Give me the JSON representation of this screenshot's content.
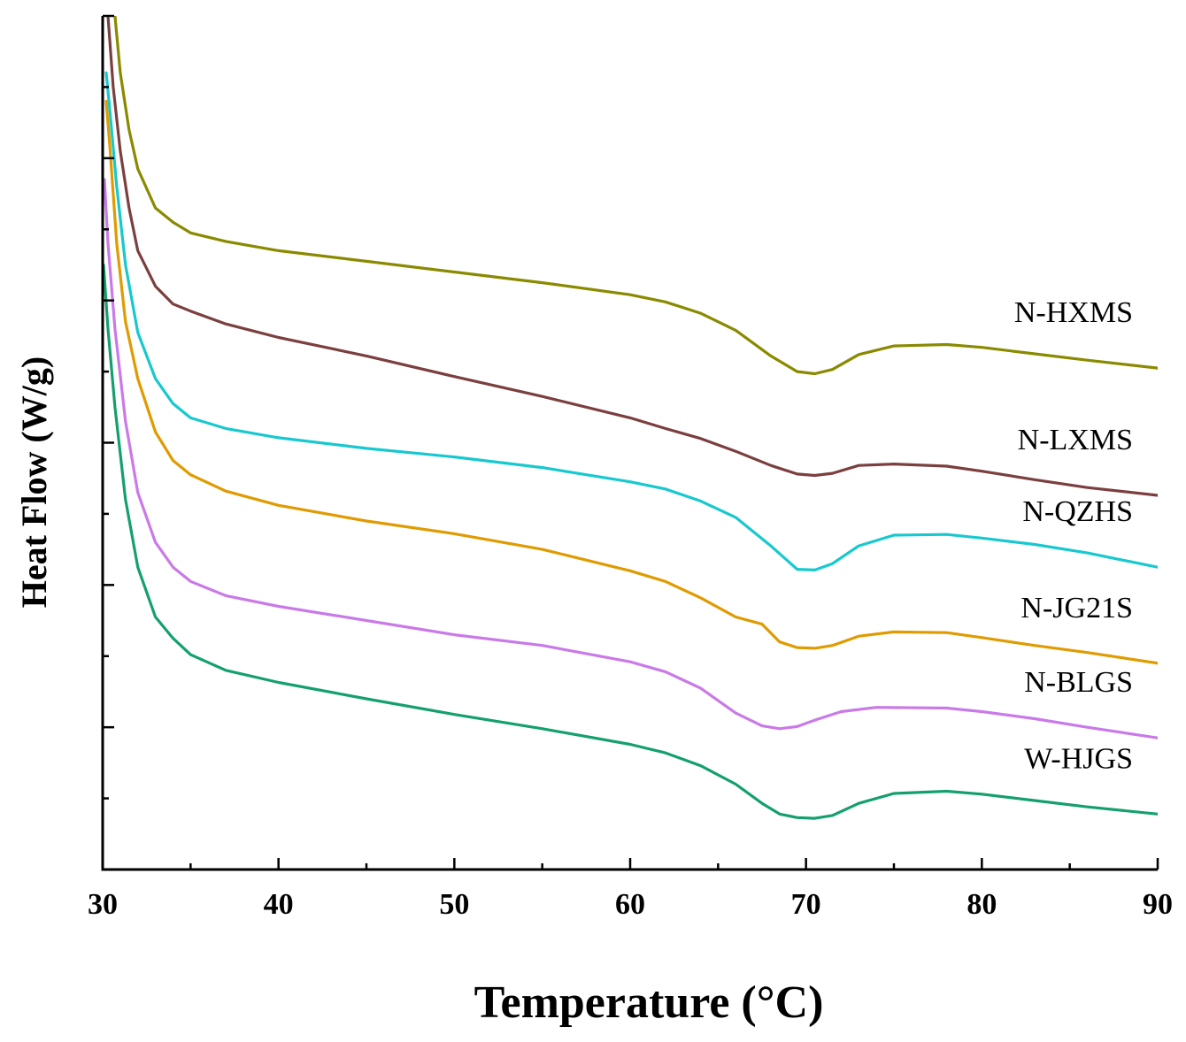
{
  "chart_data": {
    "type": "line",
    "title": "",
    "xlabel": "Temperature (°C)",
    "ylabel": "Heat Flow (W/g)",
    "xlim": [
      30,
      90
    ],
    "ylim": [
      0,
      12
    ],
    "x_ticks": [
      "30",
      "40",
      "50",
      "60",
      "70",
      "80",
      "90"
    ],
    "y_tick_labels_shown": false,
    "grid": false,
    "legend": "inline labels at right",
    "series": [
      {
        "name": "N-HXMS",
        "color": "#8a8a00",
        "points": [
          [
            30.7,
            12.0
          ],
          [
            31.0,
            11.2
          ],
          [
            31.5,
            10.4
          ],
          [
            32,
            9.85
          ],
          [
            33,
            9.3
          ],
          [
            34,
            9.1
          ],
          [
            35,
            8.95
          ],
          [
            37,
            8.83
          ],
          [
            40,
            8.7
          ],
          [
            45,
            8.55
          ],
          [
            50,
            8.4
          ],
          [
            55,
            8.25
          ],
          [
            60,
            8.08
          ],
          [
            62,
            7.98
          ],
          [
            64,
            7.82
          ],
          [
            66,
            7.58
          ],
          [
            68,
            7.22
          ],
          [
            69.5,
            7.0
          ],
          [
            70.5,
            6.97
          ],
          [
            71.5,
            7.03
          ],
          [
            73,
            7.24
          ],
          [
            75,
            7.36
          ],
          [
            78,
            7.38
          ],
          [
            80,
            7.34
          ],
          [
            83,
            7.25
          ],
          [
            86,
            7.16
          ],
          [
            90,
            7.05
          ]
        ]
      },
      {
        "name": "N-LXMS",
        "color": "#7b3f3f",
        "points": [
          [
            30.3,
            12.0
          ],
          [
            30.6,
            11.0
          ],
          [
            31,
            10.1
          ],
          [
            31.5,
            9.3
          ],
          [
            32,
            8.7
          ],
          [
            33,
            8.2
          ],
          [
            34,
            7.95
          ],
          [
            35,
            7.85
          ],
          [
            37,
            7.67
          ],
          [
            40,
            7.48
          ],
          [
            45,
            7.22
          ],
          [
            50,
            6.93
          ],
          [
            55,
            6.65
          ],
          [
            60,
            6.35
          ],
          [
            62,
            6.2
          ],
          [
            64,
            6.06
          ],
          [
            66,
            5.88
          ],
          [
            68,
            5.68
          ],
          [
            69.5,
            5.56
          ],
          [
            70.5,
            5.54
          ],
          [
            71.5,
            5.57
          ],
          [
            73,
            5.68
          ],
          [
            75,
            5.7
          ],
          [
            78,
            5.67
          ],
          [
            80,
            5.6
          ],
          [
            83,
            5.48
          ],
          [
            86,
            5.37
          ],
          [
            90,
            5.26
          ]
        ]
      },
      {
        "name": "N-QZHS",
        "color": "#17c9cf",
        "points": [
          [
            30.2,
            11.2
          ],
          [
            30.4,
            10.7
          ],
          [
            30.8,
            9.6
          ],
          [
            31.3,
            8.5
          ],
          [
            32,
            7.55
          ],
          [
            33,
            6.9
          ],
          [
            34,
            6.55
          ],
          [
            35,
            6.35
          ],
          [
            37,
            6.2
          ],
          [
            40,
            6.07
          ],
          [
            45,
            5.92
          ],
          [
            50,
            5.8
          ],
          [
            55,
            5.65
          ],
          [
            60,
            5.45
          ],
          [
            62,
            5.35
          ],
          [
            64,
            5.18
          ],
          [
            66,
            4.95
          ],
          [
            68,
            4.55
          ],
          [
            69.5,
            4.22
          ],
          [
            70.5,
            4.21
          ],
          [
            71.5,
            4.3
          ],
          [
            73,
            4.55
          ],
          [
            75,
            4.7
          ],
          [
            78,
            4.71
          ],
          [
            80,
            4.66
          ],
          [
            83,
            4.57
          ],
          [
            86,
            4.45
          ],
          [
            90,
            4.25
          ]
        ]
      },
      {
        "name": "N-JG21S",
        "color": "#e09b00",
        "points": [
          [
            30.2,
            10.8
          ],
          [
            30.4,
            10.2
          ],
          [
            30.8,
            8.8
          ],
          [
            31.3,
            7.7
          ],
          [
            32,
            6.9
          ],
          [
            33,
            6.15
          ],
          [
            34,
            5.75
          ],
          [
            35,
            5.55
          ],
          [
            37,
            5.32
          ],
          [
            40,
            5.12
          ],
          [
            45,
            4.9
          ],
          [
            50,
            4.72
          ],
          [
            55,
            4.5
          ],
          [
            60,
            4.2
          ],
          [
            62,
            4.05
          ],
          [
            64,
            3.82
          ],
          [
            66,
            3.55
          ],
          [
            67.5,
            3.45
          ],
          [
            68.5,
            3.2
          ],
          [
            69.5,
            3.12
          ],
          [
            70.5,
            3.11
          ],
          [
            71.5,
            3.15
          ],
          [
            73,
            3.28
          ],
          [
            75,
            3.34
          ],
          [
            78,
            3.33
          ],
          [
            80,
            3.26
          ],
          [
            83,
            3.15
          ],
          [
            86,
            3.05
          ],
          [
            90,
            2.9
          ]
        ]
      },
      {
        "name": "N-BLGS",
        "color": "#c97ae8",
        "points": [
          [
            30.1,
            9.7
          ],
          [
            30.3,
            8.8
          ],
          [
            30.7,
            7.6
          ],
          [
            31.3,
            6.3
          ],
          [
            32,
            5.3
          ],
          [
            33,
            4.6
          ],
          [
            34,
            4.25
          ],
          [
            35,
            4.05
          ],
          [
            37,
            3.85
          ],
          [
            40,
            3.7
          ],
          [
            45,
            3.5
          ],
          [
            50,
            3.3
          ],
          [
            55,
            3.15
          ],
          [
            60,
            2.92
          ],
          [
            62,
            2.78
          ],
          [
            64,
            2.55
          ],
          [
            66,
            2.2
          ],
          [
            67.5,
            2.02
          ],
          [
            68.5,
            1.98
          ],
          [
            69.5,
            2.01
          ],
          [
            70.5,
            2.1
          ],
          [
            72,
            2.22
          ],
          [
            74,
            2.28
          ],
          [
            78,
            2.27
          ],
          [
            80,
            2.22
          ],
          [
            83,
            2.12
          ],
          [
            86,
            2.0
          ],
          [
            90,
            1.85
          ]
        ]
      },
      {
        "name": "W-HJGS",
        "color": "#14a06e",
        "points": [
          [
            30.05,
            8.5
          ],
          [
            30.3,
            7.6
          ],
          [
            30.7,
            6.5
          ],
          [
            31.3,
            5.2
          ],
          [
            32,
            4.25
          ],
          [
            33,
            3.55
          ],
          [
            34,
            3.25
          ],
          [
            35,
            3.02
          ],
          [
            37,
            2.8
          ],
          [
            40,
            2.63
          ],
          [
            45,
            2.4
          ],
          [
            50,
            2.18
          ],
          [
            55,
            1.98
          ],
          [
            60,
            1.76
          ],
          [
            62,
            1.64
          ],
          [
            64,
            1.46
          ],
          [
            66,
            1.2
          ],
          [
            67.5,
            0.93
          ],
          [
            68.5,
            0.78
          ],
          [
            69.5,
            0.73
          ],
          [
            70.5,
            0.72
          ],
          [
            71.5,
            0.76
          ],
          [
            73,
            0.93
          ],
          [
            75,
            1.07
          ],
          [
            78,
            1.1
          ],
          [
            80,
            1.06
          ],
          [
            83,
            0.97
          ],
          [
            86,
            0.88
          ],
          [
            90,
            0.78
          ]
        ]
      }
    ]
  }
}
